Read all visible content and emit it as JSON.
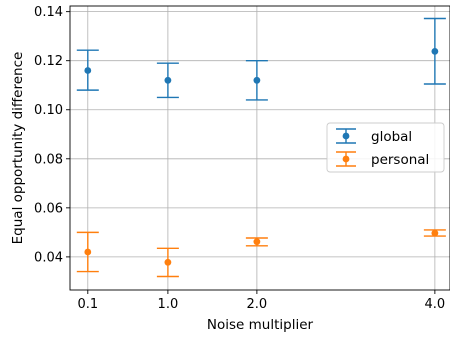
{
  "chart_data": {
    "type": "scatter",
    "title": "",
    "xlabel": "Noise multiplier",
    "ylabel": "Equal opportunity difference",
    "x_ticks": [
      {
        "value": 0.1,
        "label": "0.1"
      },
      {
        "value": 1.0,
        "label": "1.0"
      },
      {
        "value": 2.0,
        "label": "2.0"
      },
      {
        "value": 4.0,
        "label": "4.0"
      }
    ],
    "y_ticks": [
      {
        "value": 0.04,
        "label": "0.04"
      },
      {
        "value": 0.06,
        "label": "0.06"
      },
      {
        "value": 0.08,
        "label": "0.08"
      },
      {
        "value": 0.1,
        "label": "0.10"
      },
      {
        "value": 0.12,
        "label": "0.12"
      },
      {
        "value": 0.14,
        "label": "0.14"
      }
    ],
    "xlim": [
      -0.1,
      4.17
    ],
    "ylim": [
      0.0265,
      0.1423
    ],
    "grid": true,
    "legend_position": "center-right",
    "series": [
      {
        "name": "global",
        "color": "#1f77b4",
        "points": [
          {
            "x": 0.1,
            "y": 0.116,
            "lower": 0.108,
            "upper": 0.1243
          },
          {
            "x": 1.0,
            "y": 0.112,
            "lower": 0.105,
            "upper": 0.119
          },
          {
            "x": 2.0,
            "y": 0.112,
            "lower": 0.104,
            "upper": 0.12
          },
          {
            "x": 4.0,
            "y": 0.1238,
            "lower": 0.1105,
            "upper": 0.1372
          }
        ]
      },
      {
        "name": "personal",
        "color": "#ff7f0e",
        "points": [
          {
            "x": 0.1,
            "y": 0.042,
            "lower": 0.034,
            "upper": 0.05
          },
          {
            "x": 1.0,
            "y": 0.0378,
            "lower": 0.032,
            "upper": 0.0435
          },
          {
            "x": 2.0,
            "y": 0.0462,
            "lower": 0.0445,
            "upper": 0.0477
          },
          {
            "x": 4.0,
            "y": 0.0497,
            "lower": 0.0485,
            "upper": 0.051
          }
        ]
      }
    ]
  }
}
